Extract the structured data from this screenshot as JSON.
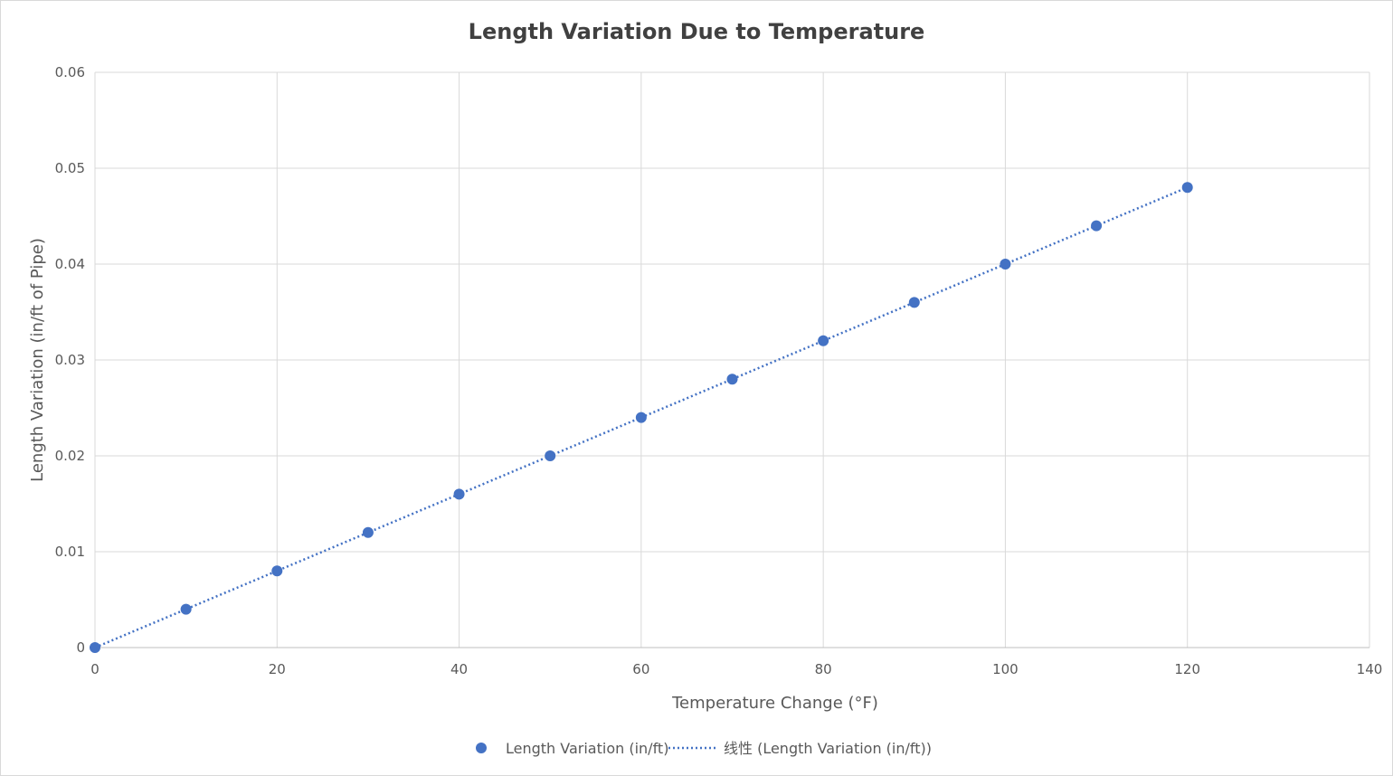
{
  "chart_data": {
    "type": "scatter",
    "title": "Length Variation Due to Temperature",
    "xlabel": "Temperature Change (°F)",
    "ylabel": "Length Variation (in/ft of Pipe)",
    "xlim": [
      0,
      140
    ],
    "ylim": [
      0,
      0.06
    ],
    "x_ticks": [
      "0",
      "20",
      "40",
      "60",
      "80",
      "100",
      "120",
      "140"
    ],
    "y_ticks": [
      "0",
      "0.01",
      "0.02",
      "0.03",
      "0.04",
      "0.05",
      "0.06"
    ],
    "x_tick_values": [
      0,
      20,
      40,
      60,
      80,
      100,
      120,
      140
    ],
    "y_tick_values": [
      0,
      0.01,
      0.02,
      0.03,
      0.04,
      0.05,
      0.06
    ],
    "grid": true,
    "legend_position": "bottom",
    "series": [
      {
        "name": "Length Variation (in/ft)",
        "color": "#4472c4",
        "x": [
          0,
          10,
          20,
          30,
          40,
          50,
          60,
          70,
          80,
          90,
          100,
          110,
          120
        ],
        "y": [
          0,
          0.004,
          0.008,
          0.012,
          0.016,
          0.02,
          0.024,
          0.028,
          0.032,
          0.036,
          0.04,
          0.044,
          0.048
        ]
      }
    ],
    "trendline": {
      "name": "线性 (Length Variation (in/ft))",
      "type": "linear",
      "style": "dotted",
      "color": "#4472c4"
    }
  }
}
